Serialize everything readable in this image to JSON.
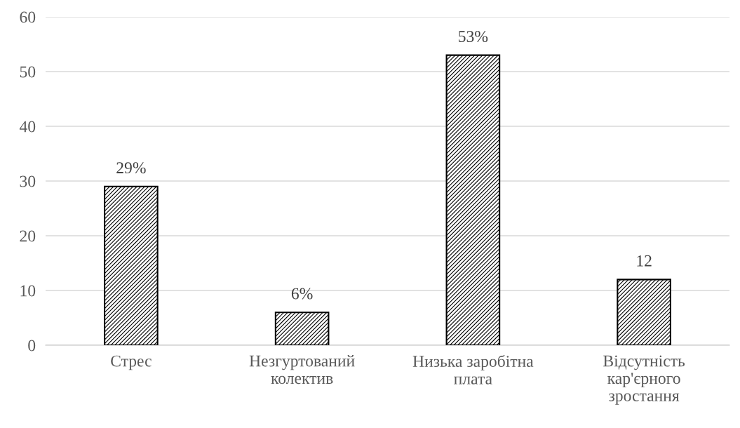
{
  "chart_data": {
    "type": "bar",
    "categories": [
      "Стрес",
      "Незгуртований\nколектив",
      "Низька заробітна\nплата",
      "Відсутність\nкар'єрного\nзростання"
    ],
    "values": [
      29,
      6,
      53,
      12
    ],
    "value_labels": [
      "29%",
      "6%",
      "53%",
      "12"
    ],
    "color": "#000000",
    "ylim": [
      0,
      60
    ],
    "yticks": [
      0,
      10,
      20,
      30,
      40,
      50,
      60
    ],
    "grid": "y",
    "legend": false
  }
}
